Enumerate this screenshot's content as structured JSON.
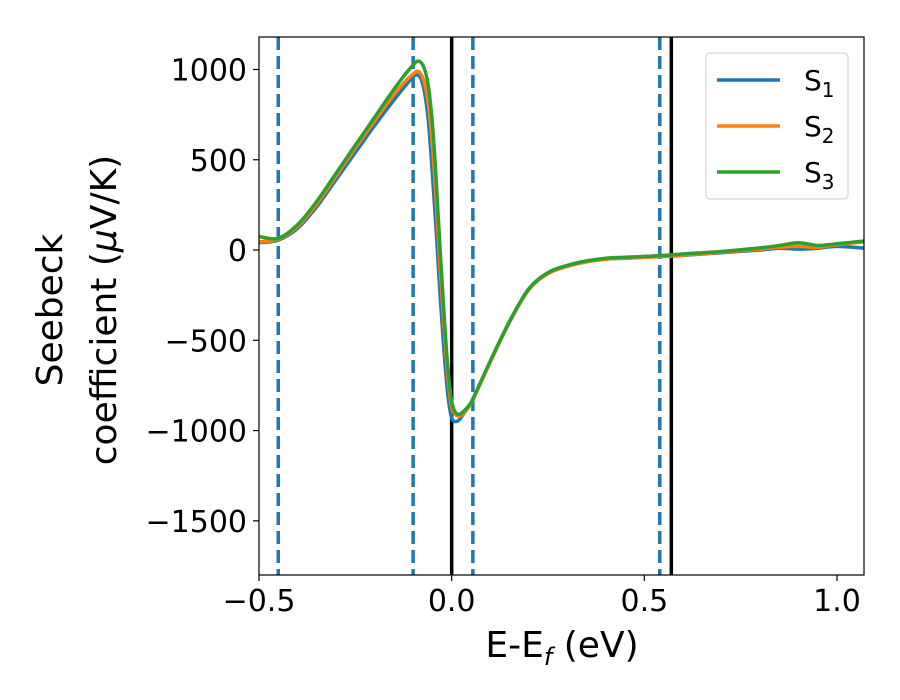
{
  "chart_data": {
    "type": "line",
    "xlabel": {
      "main": "E-E",
      "sub": "f",
      "suffix": " (eV)"
    },
    "ylabel": {
      "line1": "Seebeck",
      "line2_a": "coefficient  (",
      "line2_mu": "μ",
      "line2_b": "V/K)"
    },
    "xlim": [
      -0.5,
      1.07
    ],
    "ylim": [
      -1800,
      1180
    ],
    "x_ticks": [
      {
        "value": -0.5,
        "label": "−0.5"
      },
      {
        "value": 0.0,
        "label": "0.0"
      },
      {
        "value": 0.5,
        "label": "0.5"
      },
      {
        "value": 1.0,
        "label": "1.0"
      }
    ],
    "y_ticks": [
      {
        "value": 1000,
        "label": "1000"
      },
      {
        "value": 500,
        "label": "500"
      },
      {
        "value": 0,
        "label": "0"
      },
      {
        "value": -500,
        "label": "−500"
      },
      {
        "value": -1000,
        "label": "−1000"
      },
      {
        "value": -1500,
        "label": "−1500"
      }
    ],
    "vlines_solid": [
      0.0,
      0.57
    ],
    "vlines_dashed": [
      -0.45,
      -0.1,
      0.055,
      0.54
    ],
    "legend_position": "top-right",
    "series": [
      {
        "name": "S",
        "sub": "1",
        "color": "#1f77b4",
        "x": [
          -0.5,
          -0.45,
          -0.4,
          -0.35,
          -0.3,
          -0.25,
          -0.2,
          -0.15,
          -0.12,
          -0.1,
          -0.09,
          -0.08,
          -0.07,
          -0.06,
          -0.05,
          -0.04,
          -0.03,
          -0.02,
          -0.01,
          0.0,
          0.01,
          0.02,
          0.03,
          0.05,
          0.07,
          0.1,
          0.15,
          0.2,
          0.25,
          0.3,
          0.35,
          0.4,
          0.45,
          0.5,
          0.55,
          0.6,
          0.7,
          0.8,
          0.85,
          0.9,
          0.95,
          1.0,
          1.07
        ],
        "y": [
          40,
          55,
          120,
          240,
          390,
          540,
          690,
          830,
          910,
          960,
          970,
          950,
          870,
          700,
          420,
          100,
          -250,
          -560,
          -800,
          -930,
          -950,
          -940,
          -910,
          -850,
          -760,
          -620,
          -400,
          -220,
          -130,
          -90,
          -65,
          -50,
          -45,
          -40,
          -35,
          -30,
          -15,
          0,
          10,
          5,
          10,
          20,
          10
        ]
      },
      {
        "name": "S",
        "sub": "2",
        "color": "#ff7f0e",
        "x": [
          -0.5,
          -0.45,
          -0.4,
          -0.35,
          -0.3,
          -0.25,
          -0.2,
          -0.15,
          -0.12,
          -0.1,
          -0.09,
          -0.08,
          -0.07,
          -0.06,
          -0.05,
          -0.04,
          -0.03,
          -0.02,
          -0.01,
          0.0,
          0.01,
          0.02,
          0.03,
          0.05,
          0.07,
          0.1,
          0.15,
          0.2,
          0.25,
          0.3,
          0.35,
          0.4,
          0.45,
          0.5,
          0.55,
          0.6,
          0.7,
          0.8,
          0.85,
          0.9,
          0.95,
          1.0,
          1.07
        ],
        "y": [
          45,
          60,
          130,
          255,
          410,
          565,
          715,
          860,
          935,
          975,
          990,
          975,
          920,
          800,
          580,
          260,
          -100,
          -420,
          -700,
          -870,
          -910,
          -920,
          -905,
          -850,
          -760,
          -620,
          -400,
          -220,
          -130,
          -90,
          -65,
          -50,
          -45,
          -40,
          -35,
          -28,
          -12,
          5,
          15,
          20,
          15,
          30,
          45
        ]
      },
      {
        "name": "S",
        "sub": "3",
        "color": "#2ca02c",
        "x": [
          -0.5,
          -0.45,
          -0.4,
          -0.35,
          -0.3,
          -0.25,
          -0.2,
          -0.15,
          -0.12,
          -0.1,
          -0.09,
          -0.08,
          -0.07,
          -0.06,
          -0.05,
          -0.04,
          -0.03,
          -0.02,
          -0.01,
          0.0,
          0.01,
          0.02,
          0.03,
          0.05,
          0.07,
          0.1,
          0.15,
          0.2,
          0.25,
          0.3,
          0.35,
          0.4,
          0.45,
          0.5,
          0.55,
          0.6,
          0.7,
          0.8,
          0.85,
          0.9,
          0.95,
          1.0,
          1.07
        ],
        "y": [
          75,
          65,
          140,
          270,
          425,
          580,
          735,
          890,
          975,
          1025,
          1045,
          1040,
          1000,
          900,
          700,
          380,
          0,
          -350,
          -650,
          -840,
          -900,
          -910,
          -895,
          -845,
          -755,
          -615,
          -395,
          -215,
          -125,
          -85,
          -60,
          -45,
          -40,
          -35,
          -30,
          -22,
          -8,
          12,
          25,
          40,
          25,
          35,
          50
        ]
      }
    ]
  }
}
